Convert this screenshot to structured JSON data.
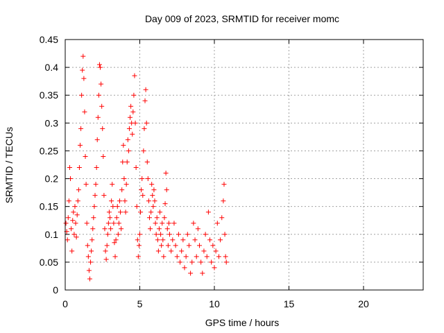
{
  "chart_data": {
    "type": "scatter",
    "title": "Day 009 of 2023, SRMTID for receiver momc",
    "xlabel": "GPS time / hours",
    "ylabel": "SRMTID / TECUs",
    "xlim": [
      0,
      24
    ],
    "ylim": [
      0,
      0.45
    ],
    "xticks": [
      0,
      5,
      10,
      15,
      20
    ],
    "xtick_labels": [
      "0",
      "5",
      "10",
      "15",
      "20"
    ],
    "yticks": [
      0,
      0.05,
      0.1,
      0.15,
      0.2,
      0.25,
      0.3,
      0.35,
      0.4,
      0.45
    ],
    "ytick_labels": [
      "0",
      "0.05",
      "0.1",
      "0.15",
      "0.2",
      "0.25",
      "0.3",
      "0.35",
      "0.4",
      "0.45"
    ],
    "grid": true,
    "marker": "plus",
    "marker_color": "#ff0000",
    "series": [
      {
        "name": "SRMTID",
        "points": [
          [
            0.05,
            0.12
          ],
          [
            0.1,
            0.105
          ],
          [
            0.15,
            0.09
          ],
          [
            0.2,
            0.13
          ],
          [
            0.25,
            0.16
          ],
          [
            0.3,
            0.22
          ],
          [
            0.35,
            0.2
          ],
          [
            0.4,
            0.11
          ],
          [
            0.45,
            0.07
          ],
          [
            0.5,
            0.125
          ],
          [
            0.55,
            0.14
          ],
          [
            0.6,
            0.1
          ],
          [
            0.65,
            0.15
          ],
          [
            0.7,
            0.12
          ],
          [
            0.75,
            0.095
          ],
          [
            0.8,
            0.135
          ],
          [
            0.85,
            0.16
          ],
          [
            0.9,
            0.18
          ],
          [
            0.95,
            0.22
          ],
          [
            1.0,
            0.26
          ],
          [
            1.05,
            0.29
          ],
          [
            1.1,
            0.35
          ],
          [
            1.15,
            0.395
          ],
          [
            1.2,
            0.42
          ],
          [
            1.25,
            0.38
          ],
          [
            1.3,
            0.32
          ],
          [
            1.35,
            0.24
          ],
          [
            1.4,
            0.19
          ],
          [
            1.45,
            0.12
          ],
          [
            1.5,
            0.08
          ],
          [
            1.55,
            0.06
          ],
          [
            1.6,
            0.035
          ],
          [
            1.65,
            0.02
          ],
          [
            1.7,
            0.05
          ],
          [
            1.75,
            0.07
          ],
          [
            1.8,
            0.09
          ],
          [
            1.85,
            0.11
          ],
          [
            1.9,
            0.13
          ],
          [
            1.95,
            0.15
          ],
          [
            2.0,
            0.17
          ],
          [
            2.05,
            0.19
          ],
          [
            2.1,
            0.22
          ],
          [
            2.15,
            0.27
          ],
          [
            2.2,
            0.31
          ],
          [
            2.25,
            0.35
          ],
          [
            2.3,
            0.405
          ],
          [
            2.35,
            0.4
          ],
          [
            2.4,
            0.37
          ],
          [
            2.45,
            0.33
          ],
          [
            2.5,
            0.29
          ],
          [
            2.55,
            0.24
          ],
          [
            2.6,
            0.17
          ],
          [
            2.65,
            0.11
          ],
          [
            2.7,
            0.07
          ],
          [
            2.75,
            0.055
          ],
          [
            2.8,
            0.08
          ],
          [
            2.85,
            0.1
          ],
          [
            2.9,
            0.12
          ],
          [
            2.95,
            0.14
          ],
          [
            3.0,
            0.13
          ],
          [
            3.05,
            0.11
          ],
          [
            3.1,
            0.16
          ],
          [
            3.15,
            0.19
          ],
          [
            3.2,
            0.15
          ],
          [
            3.25,
            0.12
          ],
          [
            3.3,
            0.085
          ],
          [
            3.35,
            0.06
          ],
          [
            3.4,
            0.09
          ],
          [
            3.45,
            0.13
          ],
          [
            3.5,
            0.15
          ],
          [
            3.55,
            0.1
          ],
          [
            3.6,
            0.12
          ],
          [
            3.65,
            0.16
          ],
          [
            3.7,
            0.14
          ],
          [
            3.75,
            0.11
          ],
          [
            3.8,
            0.18
          ],
          [
            3.85,
            0.23
          ],
          [
            3.9,
            0.26
          ],
          [
            3.95,
            0.2
          ],
          [
            4.0,
            0.16
          ],
          [
            4.05,
            0.14
          ],
          [
            4.1,
            0.19
          ],
          [
            4.15,
            0.23
          ],
          [
            4.2,
            0.27
          ],
          [
            4.25,
            0.25
          ],
          [
            4.3,
            0.29
          ],
          [
            4.35,
            0.31
          ],
          [
            4.4,
            0.33
          ],
          [
            4.45,
            0.3
          ],
          [
            4.5,
            0.28
          ],
          [
            4.55,
            0.32
          ],
          [
            4.6,
            0.35
          ],
          [
            4.65,
            0.385
          ],
          [
            4.7,
            0.3
          ],
          [
            4.75,
            0.22
          ],
          [
            4.8,
            0.15
          ],
          [
            4.85,
            0.09
          ],
          [
            4.9,
            0.06
          ],
          [
            4.95,
            0.08
          ],
          [
            5.0,
            0.1
          ],
          [
            5.05,
            0.14
          ],
          [
            5.1,
            0.18
          ],
          [
            5.15,
            0.2
          ],
          [
            5.2,
            0.17
          ],
          [
            5.25,
            0.25
          ],
          [
            5.3,
            0.29
          ],
          [
            5.35,
            0.34
          ],
          [
            5.4,
            0.36
          ],
          [
            5.45,
            0.3
          ],
          [
            5.5,
            0.23
          ],
          [
            5.55,
            0.2
          ],
          [
            5.6,
            0.16
          ],
          [
            5.65,
            0.13
          ],
          [
            5.7,
            0.11
          ],
          [
            5.75,
            0.14
          ],
          [
            5.8,
            0.19
          ],
          [
            5.85,
            0.17
          ],
          [
            5.9,
            0.15
          ],
          [
            5.95,
            0.18
          ],
          [
            6.0,
            0.16
          ],
          [
            6.05,
            0.12
          ],
          [
            6.1,
            0.1
          ],
          [
            6.15,
            0.13
          ],
          [
            6.2,
            0.09
          ],
          [
            6.25,
            0.07
          ],
          [
            6.3,
            0.11
          ],
          [
            6.35,
            0.14
          ],
          [
            6.4,
            0.1
          ],
          [
            6.45,
            0.08
          ],
          [
            6.5,
            0.12
          ],
          [
            6.55,
            0.09
          ],
          [
            6.6,
            0.06
          ],
          [
            6.65,
            0.13
          ],
          [
            6.7,
            0.155
          ],
          [
            6.75,
            0.21
          ],
          [
            6.8,
            0.18
          ],
          [
            6.85,
            0.11
          ],
          [
            6.9,
            0.08
          ],
          [
            6.95,
            0.12
          ],
          [
            7.0,
            0.1
          ],
          [
            7.1,
            0.07
          ],
          [
            7.2,
            0.09
          ],
          [
            7.3,
            0.12
          ],
          [
            7.4,
            0.08
          ],
          [
            7.5,
            0.06
          ],
          [
            7.6,
            0.1
          ],
          [
            7.7,
            0.05
          ],
          [
            7.8,
            0.07
          ],
          [
            7.9,
            0.09
          ],
          [
            8.0,
            0.04
          ],
          [
            8.1,
            0.06
          ],
          [
            8.2,
            0.1
          ],
          [
            8.3,
            0.08
          ],
          [
            8.4,
            0.03
          ],
          [
            8.5,
            0.05
          ],
          [
            8.6,
            0.12
          ],
          [
            8.7,
            0.09
          ],
          [
            8.8,
            0.06
          ],
          [
            8.9,
            0.11
          ],
          [
            9.0,
            0.08
          ],
          [
            9.1,
            0.05
          ],
          [
            9.2,
            0.03
          ],
          [
            9.3,
            0.07
          ],
          [
            9.4,
            0.1
          ],
          [
            9.5,
            0.06
          ],
          [
            9.6,
            0.14
          ],
          [
            9.7,
            0.09
          ],
          [
            9.8,
            0.05
          ],
          [
            9.9,
            0.08
          ],
          [
            10.0,
            0.04
          ],
          [
            10.1,
            0.07
          ],
          [
            10.2,
            0.12
          ],
          [
            10.3,
            0.06
          ],
          [
            10.4,
            0.09
          ],
          [
            10.5,
            0.13
          ],
          [
            10.6,
            0.16
          ],
          [
            10.65,
            0.19
          ],
          [
            10.7,
            0.1
          ],
          [
            10.75,
            0.06
          ],
          [
            10.8,
            0.05
          ]
        ]
      }
    ]
  }
}
